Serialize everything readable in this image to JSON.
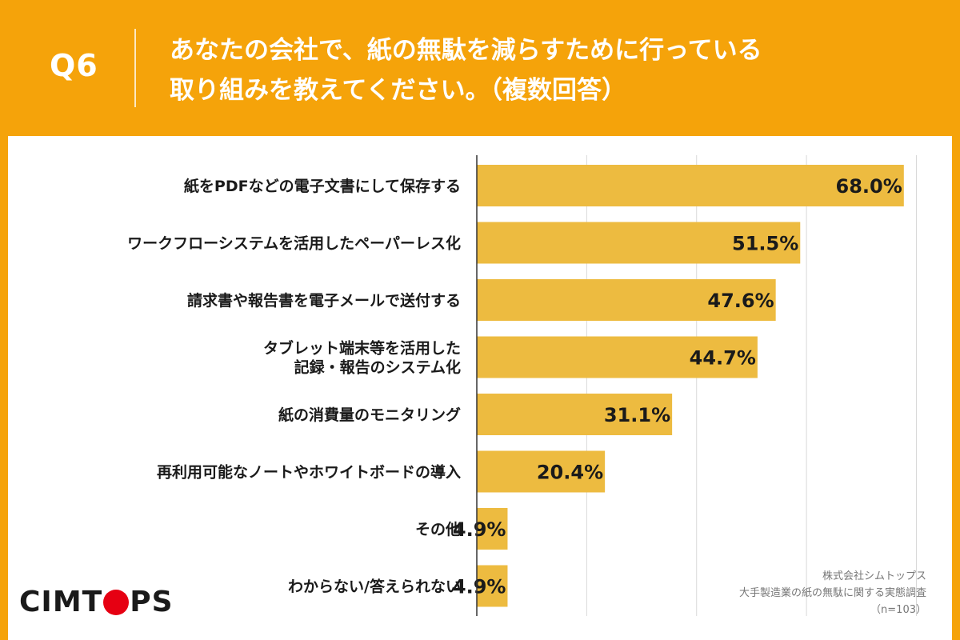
{
  "header": {
    "q_label": "Q6",
    "question_line1": "あなたの会社で、紙の無駄を減らすために行っている",
    "question_line2": "取り組みを教えてください。（複数回答）"
  },
  "logo": {
    "before": "CIMT",
    "after": "PS"
  },
  "source": {
    "line1": "株式会社シムトップス",
    "line2": "大手製造業の紙の無駄に関する実態調査",
    "line3": "（n=103）"
  },
  "colors": {
    "background": "#F5A30A",
    "bar": "#EDBB40",
    "logo_accent": "#E60012"
  },
  "chart_data": {
    "type": "bar",
    "orientation": "horizontal",
    "categories": [
      [
        "紙をPDFなどの電子文書にして保存する"
      ],
      [
        "ワークフローシステムを活用したペーパーレス化"
      ],
      [
        "請求書や報告書を電子メールで送付する"
      ],
      [
        "タブレット端末等を活用した",
        "記録・報告のシステム化"
      ],
      [
        "紙の消費量のモニタリング"
      ],
      [
        "再利用可能なノートやホワイトボードの導入"
      ],
      [
        "その他"
      ],
      [
        "わからない/答えられない"
      ]
    ],
    "values": [
      68.0,
      51.5,
      47.6,
      44.7,
      31.1,
      20.4,
      4.9,
      4.9
    ],
    "value_labels": [
      "68.0%",
      "51.5%",
      "47.6%",
      "44.7%",
      "31.1%",
      "20.4%",
      "4.9%",
      "4.9%"
    ],
    "xlim": [
      0,
      70
    ],
    "grid": true
  }
}
